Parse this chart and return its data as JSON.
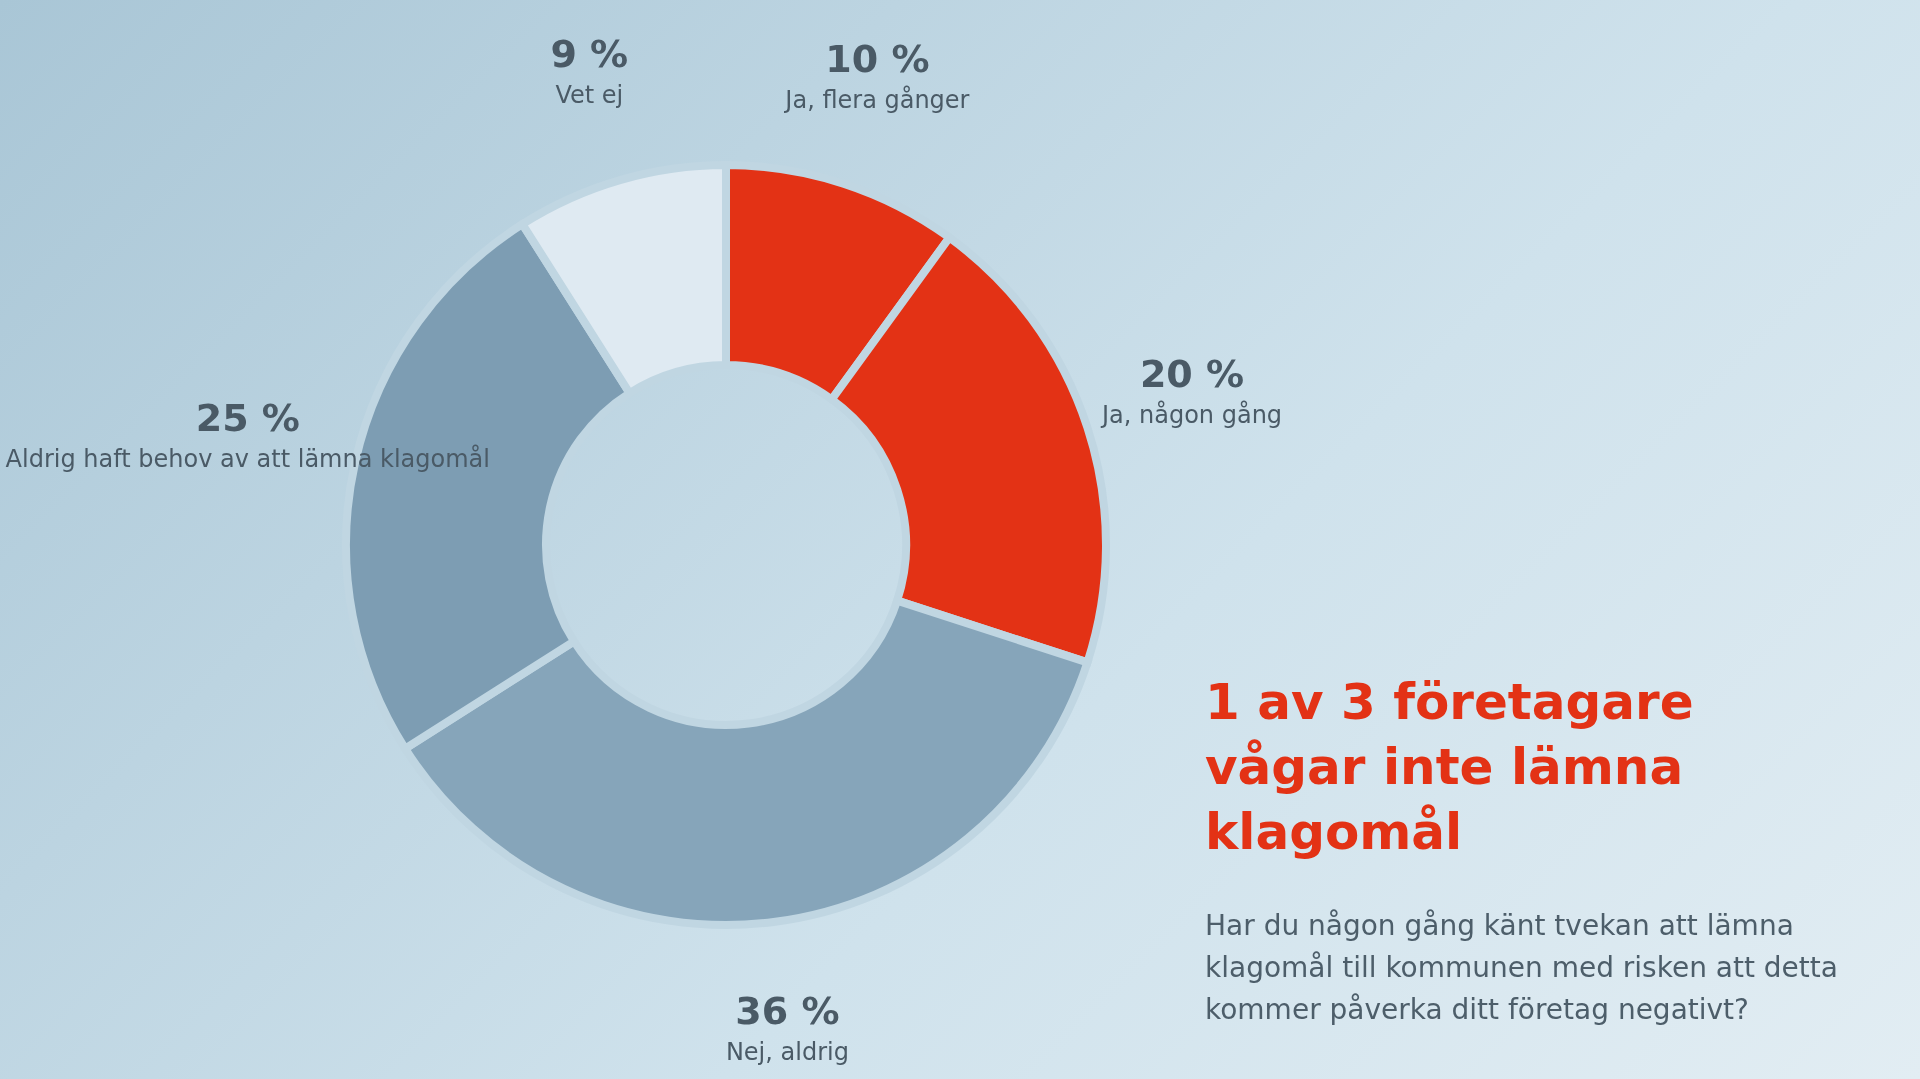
{
  "chart_data": {
    "type": "donut",
    "title": "1 av 3 företagare vågar inte lämna klagomål",
    "subtitle": "Har du någon gång känt tvekan att lämna klagomål till kommunen med risken att detta kommer påverka ditt företag negativt?",
    "categories": [
      "Ja, flera gånger",
      "Ja, någon gång",
      "Nej, aldrig",
      "Aldrig haft behov av att lämna klagomål",
      "Vet ej"
    ],
    "values": [
      10,
      20,
      36,
      25,
      9
    ],
    "value_labels": [
      "10 %",
      "20 %",
      "36 %",
      "25 %",
      "9 %"
    ],
    "colors": [
      "#e33215",
      "#e33215",
      "#86a5ba",
      "#7d9db3",
      "#dfeaf2"
    ],
    "legend": false
  }
}
